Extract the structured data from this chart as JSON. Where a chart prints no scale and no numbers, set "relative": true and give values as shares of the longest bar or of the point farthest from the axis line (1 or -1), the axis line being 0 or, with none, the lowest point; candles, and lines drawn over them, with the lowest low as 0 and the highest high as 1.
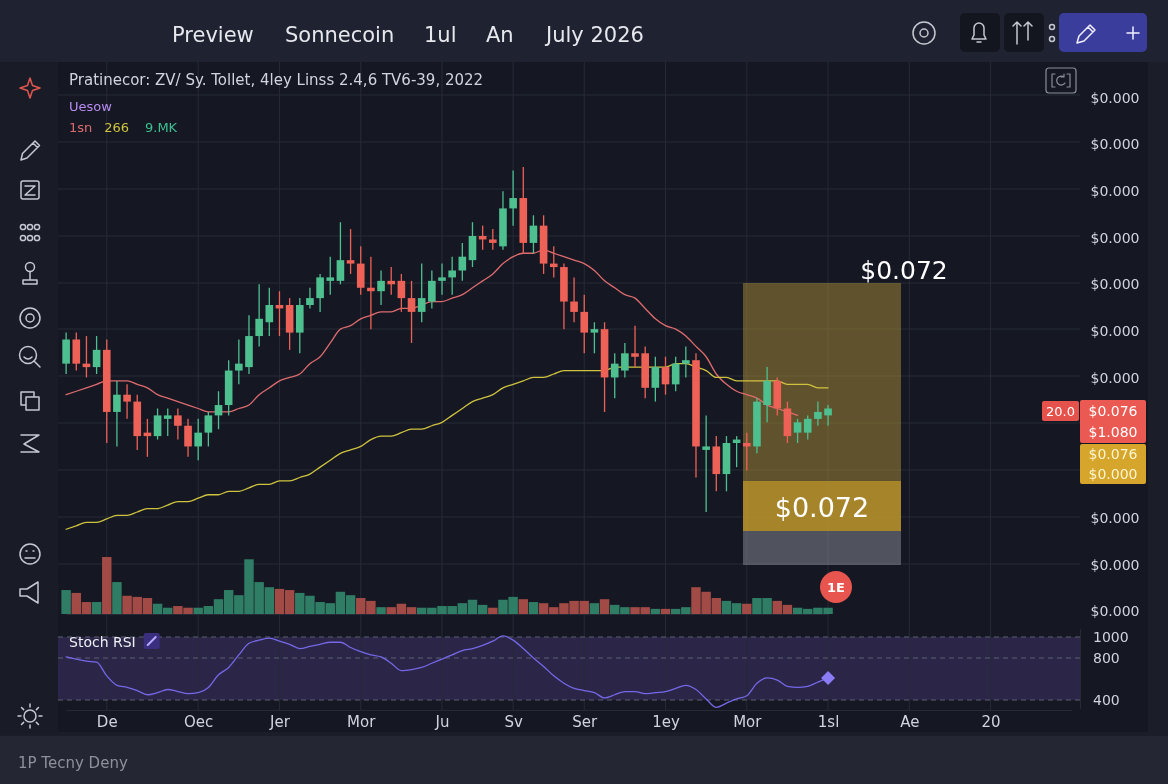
{
  "chart_data": [
    {
      "type": "candlestick",
      "title": "Pratinecor: ZV/ Sy. Tollet, 4ley Linss 2.4,6 TV6-39, 2022",
      "legend_title": "Uesow",
      "relative": true,
      "categories": [
        null,
        null,
        null,
        null,
        null,
        null,
        null,
        null,
        null,
        null,
        null,
        null,
        null,
        null,
        null,
        null,
        null,
        null,
        null,
        null,
        null,
        null,
        null,
        null,
        null,
        null,
        null,
        null,
        null,
        null,
        null,
        null,
        null,
        null,
        null,
        null,
        null,
        null,
        null,
        null,
        null,
        null,
        null,
        null,
        null,
        null,
        null,
        null,
        null,
        null,
        null,
        null,
        null,
        null,
        null,
        null,
        null,
        null,
        null,
        null,
        null,
        null,
        null,
        null,
        null,
        null,
        null,
        null,
        null,
        null,
        null,
        null,
        null,
        null,
        null,
        null
      ],
      "ohlc": [
        [
          0.43,
          0.52,
          0.4,
          0.5
        ],
        [
          0.5,
          0.52,
          0.41,
          0.43
        ],
        [
          0.43,
          0.51,
          0.39,
          0.42
        ],
        [
          0.42,
          0.51,
          0.4,
          0.47
        ],
        [
          0.47,
          0.5,
          0.2,
          0.29
        ],
        [
          0.29,
          0.38,
          0.19,
          0.34
        ],
        [
          0.34,
          0.37,
          0.27,
          0.32
        ],
        [
          0.32,
          0.34,
          0.18,
          0.22
        ],
        [
          0.23,
          0.27,
          0.16,
          0.22
        ],
        [
          0.22,
          0.3,
          0.21,
          0.28
        ],
        [
          0.27,
          0.3,
          0.22,
          0.28
        ],
        [
          0.28,
          0.3,
          0.21,
          0.25
        ],
        [
          0.25,
          0.27,
          0.16,
          0.19
        ],
        [
          0.19,
          0.27,
          0.15,
          0.23
        ],
        [
          0.23,
          0.29,
          0.19,
          0.28
        ],
        [
          0.28,
          0.35,
          0.24,
          0.31
        ],
        [
          0.31,
          0.44,
          0.28,
          0.41
        ],
        [
          0.41,
          0.5,
          0.37,
          0.43
        ],
        [
          0.42,
          0.57,
          0.4,
          0.51
        ],
        [
          0.51,
          0.66,
          0.48,
          0.56
        ],
        [
          0.55,
          0.65,
          0.51,
          0.6
        ],
        [
          0.6,
          0.64,
          0.51,
          0.59
        ],
        [
          0.6,
          0.62,
          0.47,
          0.52
        ],
        [
          0.52,
          0.62,
          0.46,
          0.6
        ],
        [
          0.6,
          0.65,
          0.59,
          0.62
        ],
        [
          0.62,
          0.69,
          0.58,
          0.68
        ],
        [
          0.67,
          0.74,
          0.63,
          0.68
        ],
        [
          0.67,
          0.84,
          0.66,
          0.73
        ],
        [
          0.73,
          0.82,
          0.69,
          0.72
        ],
        [
          0.72,
          0.77,
          0.63,
          0.65
        ],
        [
          0.65,
          0.74,
          0.53,
          0.64
        ],
        [
          0.64,
          0.7,
          0.6,
          0.67
        ],
        [
          0.67,
          0.71,
          0.63,
          0.66
        ],
        [
          0.67,
          0.69,
          0.58,
          0.62
        ],
        [
          0.62,
          0.67,
          0.49,
          0.58
        ],
        [
          0.58,
          0.72,
          0.55,
          0.62
        ],
        [
          0.61,
          0.7,
          0.59,
          0.67
        ],
        [
          0.67,
          0.72,
          0.63,
          0.68
        ],
        [
          0.68,
          0.74,
          0.63,
          0.7
        ],
        [
          0.7,
          0.78,
          0.67,
          0.74
        ],
        [
          0.73,
          0.84,
          0.71,
          0.8
        ],
        [
          0.8,
          0.83,
          0.76,
          0.79
        ],
        [
          0.79,
          0.82,
          0.76,
          0.78
        ],
        [
          0.77,
          0.93,
          0.76,
          0.88
        ],
        [
          0.88,
          0.99,
          0.83,
          0.91
        ],
        [
          0.91,
          1,
          0.75,
          0.78
        ],
        [
          0.78,
          0.86,
          0.75,
          0.83
        ],
        [
          0.83,
          0.86,
          0.69,
          0.72
        ],
        [
          0.72,
          0.77,
          0.68,
          0.71
        ],
        [
          0.71,
          0.72,
          0.53,
          0.61
        ],
        [
          0.61,
          0.68,
          0.55,
          0.58
        ],
        [
          0.58,
          0.63,
          0.46,
          0.52
        ],
        [
          0.52,
          0.55,
          0.46,
          0.53
        ],
        [
          0.53,
          0.55,
          0.29,
          0.39
        ],
        [
          0.39,
          0.46,
          0.33,
          0.43
        ],
        [
          0.41,
          0.49,
          0.39,
          0.46
        ],
        [
          0.46,
          0.54,
          0.42,
          0.45
        ],
        [
          0.46,
          0.48,
          0.33,
          0.36
        ],
        [
          0.36,
          0.45,
          0.32,
          0.42
        ],
        [
          0.42,
          0.45,
          0.34,
          0.37
        ],
        [
          0.37,
          0.45,
          0.35,
          0.43
        ],
        [
          0.43,
          0.48,
          0.39,
          0.44
        ],
        [
          0.44,
          0.46,
          0.1,
          0.19
        ],
        [
          0.18,
          0.28,
          0,
          0.19
        ],
        [
          0.19,
          0.22,
          0.06,
          0.11
        ],
        [
          0.11,
          0.22,
          0.06,
          0.2
        ],
        [
          0.2,
          0.22,
          0.13,
          0.21
        ],
        [
          0.2,
          0.23,
          0.12,
          0.19
        ],
        [
          0.19,
          0.33,
          0.17,
          0.32
        ],
        [
          0.31,
          0.42,
          0.26,
          0.38
        ],
        [
          0.38,
          0.39,
          0.28,
          0.3
        ],
        [
          0.3,
          0.32,
          0.2,
          0.22
        ],
        [
          0.23,
          0.27,
          0.2,
          0.26
        ],
        [
          0.23,
          0.28,
          0.21,
          0.27
        ],
        [
          0.27,
          0.32,
          0.25,
          0.29
        ],
        [
          0.28,
          0.31,
          0.25,
          0.3
        ]
      ],
      "colors": [
        "#4ebf8f",
        "#ee6157",
        "#ee6157",
        "#4ebf8f",
        "#ee6157",
        "#4ebf8f",
        "#ee6157",
        "#ee6157",
        "#ee6157",
        "#4ebf8f",
        "#4ebf8f",
        "#ee6157",
        "#ee6157",
        "#4ebf8f",
        "#4ebf8f",
        "#4ebf8f",
        "#4ebf8f",
        "#4ebf8f",
        "#4ebf8f",
        "#4ebf8f",
        "#4ebf8f",
        "#ee6157",
        "#ee6157",
        "#4ebf8f",
        "#4ebf8f",
        "#4ebf8f",
        "#4ebf8f",
        "#4ebf8f",
        "#ee6157",
        "#ee6157",
        "#ee6157",
        "#4ebf8f",
        "#ee6157",
        "#ee6157",
        "#ee6157",
        "#4ebf8f",
        "#4ebf8f",
        "#4ebf8f",
        "#4ebf8f",
        "#4ebf8f",
        "#4ebf8f",
        "#ee6157",
        "#ee6157",
        "#4ebf8f",
        "#4ebf8f",
        "#ee6157",
        "#4ebf8f",
        "#ee6157",
        "#ee6157",
        "#ee6157",
        "#ee6157",
        "#ee6157",
        "#4ebf8f",
        "#ee6157",
        "#4ebf8f",
        "#4ebf8f",
        "#ee6157",
        "#ee6157",
        "#4ebf8f",
        "#ee6157",
        "#4ebf8f",
        "#4ebf8f",
        "#ee6157",
        "#4ebf8f",
        "#ee6157",
        "#4ebf8f",
        "#4ebf8f",
        "#ee6157",
        "#4ebf8f",
        "#4ebf8f",
        "#ee6157",
        "#ee6157",
        "#4ebf8f",
        "#4ebf8f",
        "#4ebf8f",
        "#4ebf8f"
      ],
      "series": [
        {
          "type": "line",
          "name": "1sn",
          "color": "#dd6b6e",
          "values": [
            0.34,
            0.35,
            0.36,
            0.37,
            0.38,
            0.38,
            0.38,
            0.37,
            0.36,
            0.34,
            0.33,
            0.32,
            0.31,
            0.3,
            0.29,
            0.29,
            0.29,
            0.3,
            0.31,
            0.34,
            0.36,
            0.38,
            0.39,
            0.4,
            0.43,
            0.45,
            0.49,
            0.53,
            0.54,
            0.56,
            0.57,
            0.58,
            0.58,
            0.59,
            0.59,
            0.6,
            0.61,
            0.61,
            0.62,
            0.63,
            0.65,
            0.67,
            0.69,
            0.72,
            0.74,
            0.75,
            0.75,
            0.76,
            0.75,
            0.74,
            0.73,
            0.72,
            0.7,
            0.67,
            0.65,
            0.63,
            0.62,
            0.59,
            0.56,
            0.54,
            0.53,
            0.51,
            0.48,
            0.45,
            0.4,
            0.37,
            0.35,
            0.34,
            0.33,
            0.31,
            0.3,
            0.29,
            0.28,
            null,
            null,
            null
          ]
        },
        {
          "type": "line",
          "name": "266",
          "color": "#cfc23f",
          "values": [
            -0.05,
            -0.04,
            -0.03,
            -0.03,
            -0.02,
            -0.01,
            -0.01,
            0,
            0.01,
            0.01,
            0.02,
            0.03,
            0.03,
            0.04,
            0.05,
            0.05,
            0.06,
            0.06,
            0.07,
            0.08,
            0.08,
            0.09,
            0.09,
            0.1,
            0.11,
            0.13,
            0.15,
            0.17,
            0.18,
            0.19,
            0.21,
            0.22,
            0.22,
            0.23,
            0.24,
            0.24,
            0.25,
            0.26,
            0.28,
            0.3,
            0.32,
            0.33,
            0.34,
            0.36,
            0.37,
            0.38,
            0.39,
            0.39,
            0.4,
            0.41,
            0.41,
            0.41,
            0.41,
            0.41,
            0.42,
            0.42,
            0.42,
            0.42,
            0.42,
            0.42,
            0.43,
            0.43,
            0.42,
            0.41,
            0.39,
            0.39,
            0.38,
            0.38,
            0.38,
            0.38,
            0.38,
            0.37,
            0.37,
            0.37,
            0.36,
            0.36
          ]
        }
      ],
      "grid": "y",
      "legend": "top left",
      "annotations": [
        "Preview",
        "Sonnecoin",
        "1ul",
        "An",
        "July 2026",
        "$0.000",
        "$0.000",
        "$0.000",
        "$0.000",
        "$0.000",
        "$0.000",
        "$0.000",
        "$0.000",
        "$0.000",
        "20.0",
        "$0.076",
        "$1.080",
        "$0.076",
        "$0.000",
        "$0.072",
        "$0.072",
        "9.MK",
        "1P Tecny Deny"
      ]
    },
    {
      "type": "bar",
      "relative": true,
      "categories": [
        null,
        null,
        null,
        null,
        null,
        null,
        null,
        null,
        null,
        null,
        null,
        null,
        null,
        null,
        null,
        null,
        null,
        null,
        null,
        null,
        null,
        null,
        null,
        null,
        null,
        null,
        null,
        null,
        null,
        null,
        null,
        null,
        null,
        null,
        null,
        null,
        null,
        null,
        null,
        null,
        null,
        null,
        null,
        null,
        null,
        null,
        null,
        null,
        null,
        null,
        null,
        null,
        null,
        null,
        null,
        null,
        null,
        null,
        null,
        null,
        null,
        null,
        null,
        null,
        null,
        null,
        null,
        null,
        null,
        null,
        null,
        null,
        null,
        null,
        null,
        null
      ],
      "values": [
        0.42,
        0.37,
        0.21,
        0.21,
        1,
        0.56,
        0.32,
        0.3,
        0.28,
        0.18,
        0.11,
        0.14,
        0.11,
        0.11,
        0.14,
        0.26,
        0.42,
        0.33,
        0.96,
        0.56,
        0.47,
        0.44,
        0.42,
        0.37,
        0.32,
        0.21,
        0.19,
        0.39,
        0.33,
        0.28,
        0.23,
        0.12,
        0.12,
        0.18,
        0.12,
        0.11,
        0.11,
        0.14,
        0.14,
        0.19,
        0.25,
        0.16,
        0.11,
        0.25,
        0.3,
        0.26,
        0.21,
        0.19,
        0.12,
        0.19,
        0.23,
        0.23,
        0.19,
        0.26,
        0.16,
        0.12,
        0.12,
        0.12,
        0.09,
        0.09,
        0.09,
        0.12,
        0.47,
        0.39,
        0.28,
        0.23,
        0.19,
        0.18,
        0.28,
        0.28,
        0.23,
        0.16,
        0.11,
        0.09,
        0.11,
        0.11
      ],
      "colors": [
        "#2f7d64",
        "#a24a45",
        "#a24a45",
        "#2f7d64",
        "#a24a45",
        "#2f7d64",
        "#a24a45",
        "#a24a45",
        "#a24a45",
        "#2f7d64",
        "#2f7d64",
        "#a24a45",
        "#a24a45",
        "#2f7d64",
        "#2f7d64",
        "#2f7d64",
        "#2f7d64",
        "#2f7d64",
        "#2f7d64",
        "#2f7d64",
        "#2f7d64",
        "#a24a45",
        "#a24a45",
        "#2f7d64",
        "#2f7d64",
        "#2f7d64",
        "#2f7d64",
        "#2f7d64",
        "#2f7d64",
        "#a24a45",
        "#a24a45",
        "#2f7d64",
        "#a24a45",
        "#a24a45",
        "#a24a45",
        "#2f7d64",
        "#2f7d64",
        "#2f7d64",
        "#2f7d64",
        "#2f7d64",
        "#2f7d64",
        "#2f7d64",
        "#a24a45",
        "#2f7d64",
        "#2f7d64",
        "#a24a45",
        "#2f7d64",
        "#a24a45",
        "#a24a45",
        "#a24a45",
        "#a24a45",
        "#a24a45",
        "#2f7d64",
        "#a24a45",
        "#2f7d64",
        "#2f7d64",
        "#a24a45",
        "#a24a45",
        "#2f7d64",
        "#a24a45",
        "#2f7d64",
        "#2f7d64",
        "#a24a45",
        "#a24a45",
        "#a24a45",
        "#2f7d64",
        "#2f7d64",
        "#a24a45",
        "#2f7d64",
        "#2f7d64",
        "#a24a45",
        "#a24a45",
        "#2f7d64",
        "#2f7d64",
        "#2f7d64",
        "#2f7d64"
      ],
      "annotations": [
        "$0.000",
        "1E"
      ]
    },
    {
      "type": "line",
      "title": "Stoch RSI",
      "categories": [
        null,
        null,
        null,
        null,
        "De",
        null,
        null,
        null,
        null,
        null,
        null,
        null,
        null,
        "Oec",
        null,
        null,
        null,
        null,
        null,
        null,
        null,
        "Jer",
        null,
        null,
        null,
        null,
        null,
        null,
        null,
        "Mor",
        null,
        null,
        null,
        null,
        null,
        null,
        null,
        "Ju",
        null,
        null,
        null,
        null,
        null,
        null,
        "Sv",
        null,
        null,
        null,
        null,
        null,
        null,
        "Ser",
        null,
        null,
        null,
        null,
        null,
        null,
        null,
        "1ey",
        null,
        null,
        null,
        null,
        null,
        null,
        null,
        "Mor",
        null,
        null,
        null,
        null,
        null,
        null,
        null,
        "1sl",
        null,
        null,
        null,
        null,
        null,
        null,
        null,
        "Ae",
        null,
        null,
        null,
        null,
        null,
        null,
        null,
        "20",
        null,
        null,
        null,
        null,
        null,
        null,
        null,
        null
      ],
      "series": [
        {
          "color": "#7468e6",
          "values": [
            810,
            790,
            770,
            760,
            630,
            540,
            520,
            490,
            450,
            470,
            500,
            480,
            460,
            470,
            520,
            640,
            710,
            830,
            940,
            970,
            990,
            960,
            930,
            890,
            910,
            930,
            950,
            950,
            900,
            860,
            830,
            810,
            750,
            680,
            690,
            710,
            750,
            790,
            830,
            870,
            890,
            920,
            960,
            1010,
            970,
            890,
            800,
            720,
            630,
            560,
            510,
            490,
            470,
            420,
            450,
            480,
            480,
            460,
            470,
            480,
            510,
            540,
            500,
            410,
            330,
            370,
            410,
            440,
            560,
            610,
            590,
            530,
            520,
            530,
            570,
            610,
            null,
            null,
            null,
            null,
            null,
            null,
            null,
            null,
            null,
            null,
            null,
            null,
            null,
            null,
            null,
            null,
            null,
            null,
            null,
            null,
            null,
            null,
            null,
            null
          ]
        }
      ],
      "ylim": [
        320,
        1080
      ],
      "yticks": [
        1000,
        800,
        400
      ],
      "grid": "x",
      "ref_lines": [
        {
          "axis": "y",
          "value": 1000,
          "line_style": "dashed",
          "color": "#5d6073"
        },
        {
          "axis": "y",
          "value": 800,
          "line_style": "dashed",
          "color": "#5d6073"
        },
        {
          "axis": "y",
          "value": 400,
          "line_style": "dashed",
          "color": "#5d6073"
        }
      ],
      "bands": [
        {
          "axis": "y",
          "from": 400,
          "to": 1000,
          "color": "#2b2548"
        }
      ]
    }
  ]
}
